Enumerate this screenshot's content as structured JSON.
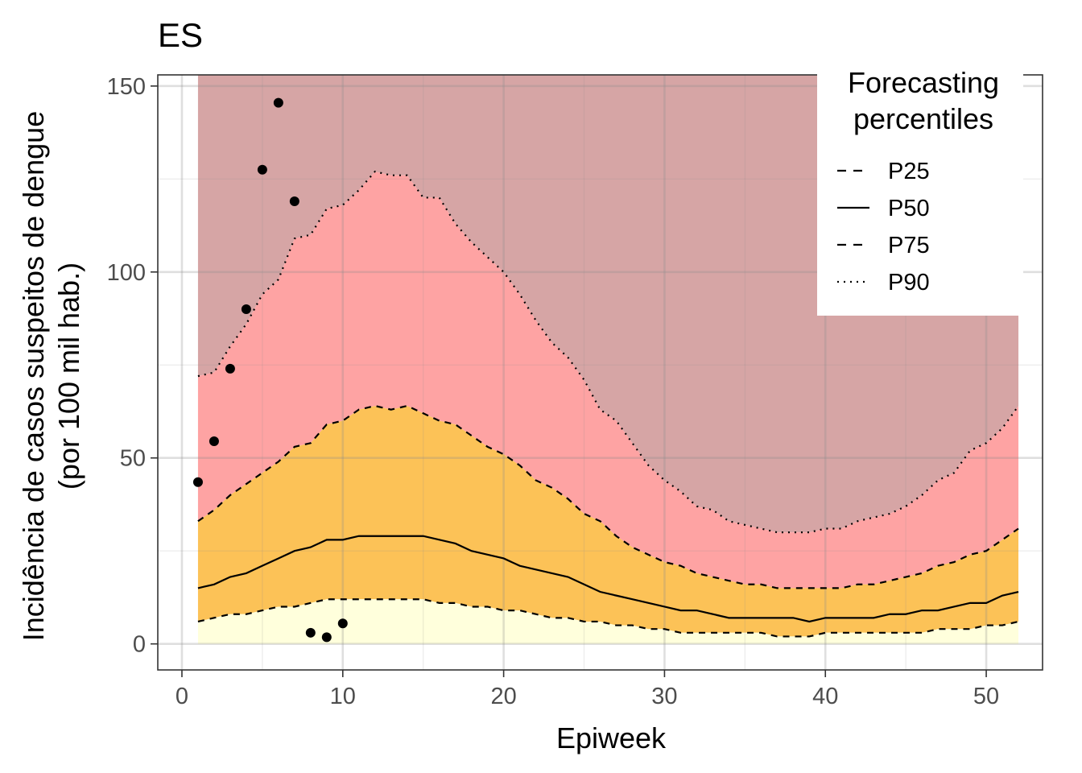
{
  "chart_data": {
    "type": "area",
    "title": "ES",
    "xlabel": "Epiweek",
    "ylabel_line1": "Incidência de casos suspeitos de dengue",
    "ylabel_line2": "(por 100 mil hab.)",
    "xlim": [
      -1.5,
      53.5
    ],
    "ylim": [
      -7,
      153
    ],
    "x_ticks": [
      0,
      10,
      20,
      30,
      40,
      50
    ],
    "y_ticks": [
      0,
      50,
      100,
      150
    ],
    "grid": true,
    "legend": {
      "title_line1": "Forecasting",
      "title_line2": "percentiles",
      "position": "top-right",
      "entries": [
        {
          "label": "P25",
          "linetype": "dashed"
        },
        {
          "label": "P50",
          "linetype": "solid"
        },
        {
          "label": "P75",
          "linetype": "dashed"
        },
        {
          "label": "P90",
          "linetype": "dotted"
        }
      ]
    },
    "band_colors": {
      "below_p25": "#ffffdc",
      "p25_p75": "#fcc257",
      "p75_p90": "#fea3a3",
      "above_p90": "#d6a5a5"
    },
    "x": [
      1,
      2,
      3,
      4,
      5,
      6,
      7,
      8,
      9,
      10,
      11,
      12,
      13,
      14,
      15,
      16,
      17,
      18,
      19,
      20,
      21,
      22,
      23,
      24,
      25,
      26,
      27,
      28,
      29,
      30,
      31,
      32,
      33,
      34,
      35,
      36,
      37,
      38,
      39,
      40,
      41,
      42,
      43,
      44,
      45,
      46,
      47,
      48,
      49,
      50,
      51,
      52
    ],
    "series": [
      {
        "name": "P25",
        "values": [
          6,
          7,
          8,
          8,
          9,
          10,
          10,
          11,
          12,
          12,
          12,
          12,
          12,
          12,
          12,
          11,
          11,
          10,
          10,
          9,
          9,
          8,
          7,
          7,
          6,
          6,
          5,
          5,
          4,
          4,
          3,
          3,
          3,
          3,
          3,
          3,
          2,
          2,
          2,
          3,
          3,
          3,
          3,
          3,
          3,
          3,
          4,
          4,
          4,
          5,
          5,
          6
        ]
      },
      {
        "name": "P50",
        "values": [
          15,
          16,
          18,
          19,
          21,
          23,
          25,
          26,
          28,
          28,
          29,
          29,
          29,
          29,
          29,
          28,
          27,
          25,
          24,
          23,
          21,
          20,
          19,
          18,
          16,
          14,
          13,
          12,
          11,
          10,
          9,
          9,
          8,
          7,
          7,
          7,
          7,
          7,
          6,
          7,
          7,
          7,
          7,
          8,
          8,
          9,
          9,
          10,
          11,
          11,
          13,
          14
        ]
      },
      {
        "name": "P75",
        "values": [
          33,
          36,
          40,
          43,
          46,
          49,
          53,
          54,
          59,
          60,
          63,
          64,
          63,
          64,
          62,
          60,
          59,
          56,
          53,
          51,
          48,
          44,
          42,
          39,
          35,
          33,
          29,
          26,
          24,
          22,
          21,
          19,
          18,
          17,
          16,
          16,
          15,
          15,
          15,
          15,
          15,
          16,
          16,
          17,
          18,
          19,
          21,
          22,
          24,
          25,
          28,
          31
        ]
      },
      {
        "name": "P90",
        "values": [
          72,
          73,
          80,
          86,
          94,
          98,
          109,
          110,
          117,
          118,
          122,
          127,
          126,
          126,
          120,
          120,
          113,
          108,
          104,
          100,
          94,
          87,
          81,
          77,
          71,
          63,
          60,
          54,
          48,
          44,
          41,
          37,
          36,
          33,
          32,
          31,
          30,
          30,
          30,
          31,
          31,
          33,
          34,
          35,
          37,
          40,
          44,
          46,
          52,
          54,
          58,
          64
        ]
      }
    ],
    "observed": {
      "x": [
        1,
        2,
        3,
        4,
        5,
        6,
        7,
        8,
        9,
        10
      ],
      "y": [
        43.5,
        54.5,
        74,
        90,
        127.5,
        145.5,
        119,
        3,
        1.8,
        5.5
      ]
    }
  }
}
